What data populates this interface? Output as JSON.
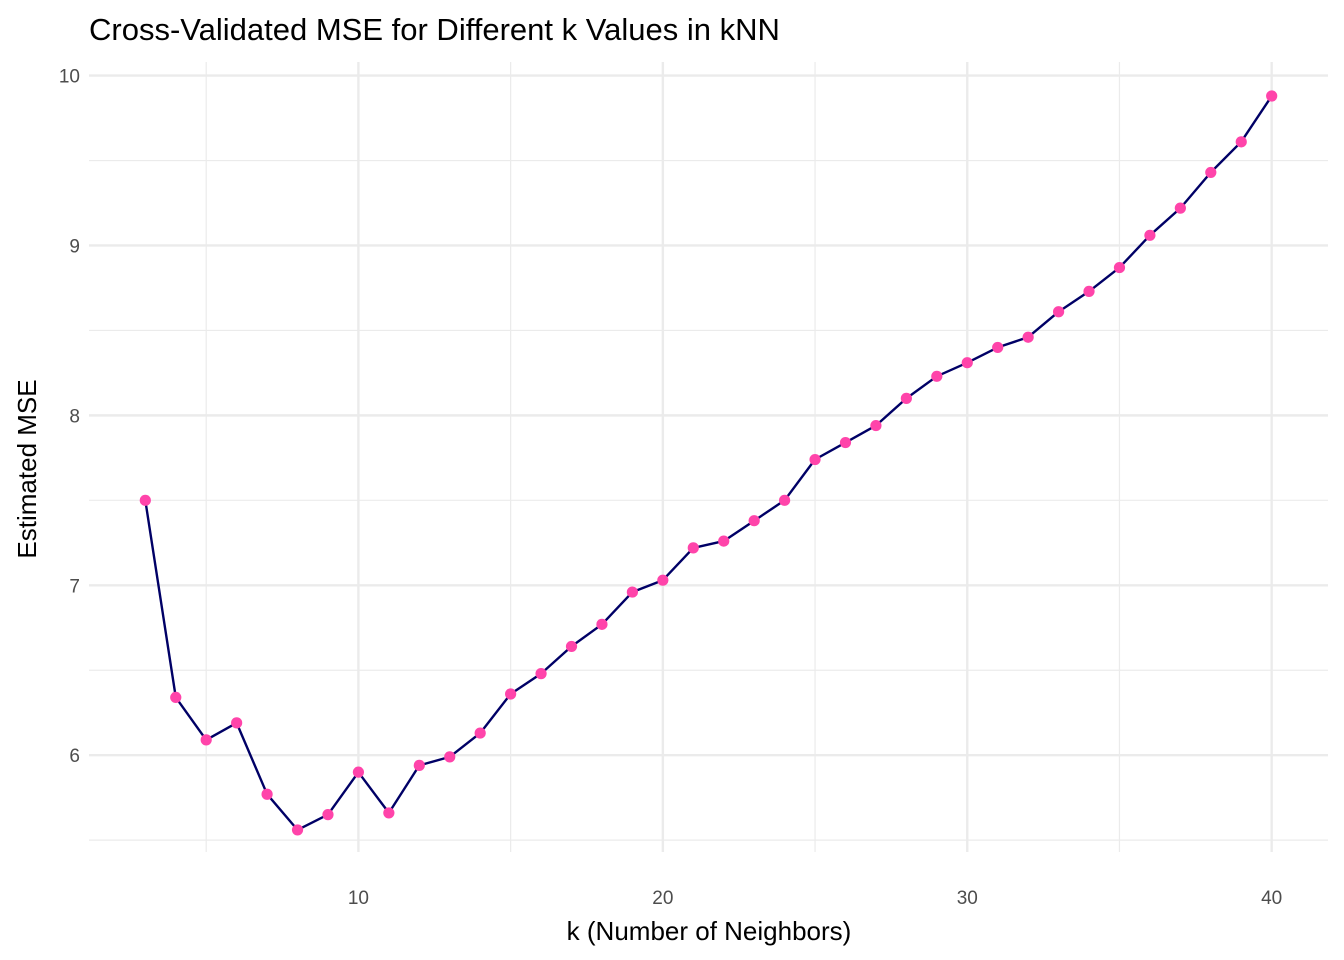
{
  "chart_data": {
    "type": "line",
    "title": "Cross-Validated MSE for Different k Values in kNN",
    "xlabel": "k (Number of Neighbors)",
    "ylabel": "Estimated MSE",
    "xlim": [
      1.15,
      41.85
    ],
    "ylim": [
      5.43,
      10.08
    ],
    "x_ticks": [
      10,
      20,
      30,
      40
    ],
    "y_ticks": [
      6,
      7,
      8,
      9,
      10
    ],
    "grid": true,
    "legend": "none",
    "line_color": "#000066",
    "point_color": "#FF44AA",
    "series": [
      {
        "x": [
          3,
          4,
          5,
          6,
          7,
          8,
          9,
          10,
          11,
          12,
          13,
          14,
          15,
          16,
          17,
          18,
          19,
          20,
          21,
          22,
          23,
          24,
          25,
          26,
          27,
          28,
          29,
          30,
          31,
          32,
          33,
          34,
          35,
          36,
          37,
          38,
          39,
          40
        ],
        "values": [
          7.5,
          6.34,
          6.09,
          6.19,
          5.77,
          5.56,
          5.65,
          5.9,
          5.66,
          5.94,
          5.99,
          6.13,
          6.36,
          6.48,
          6.64,
          6.77,
          6.96,
          7.03,
          7.22,
          7.26,
          7.38,
          7.5,
          7.74,
          7.84,
          7.94,
          8.1,
          8.23,
          8.31,
          8.4,
          8.46,
          8.61,
          8.73,
          8.87,
          9.06,
          9.22,
          9.43,
          9.61,
          9.88
        ]
      }
    ]
  }
}
